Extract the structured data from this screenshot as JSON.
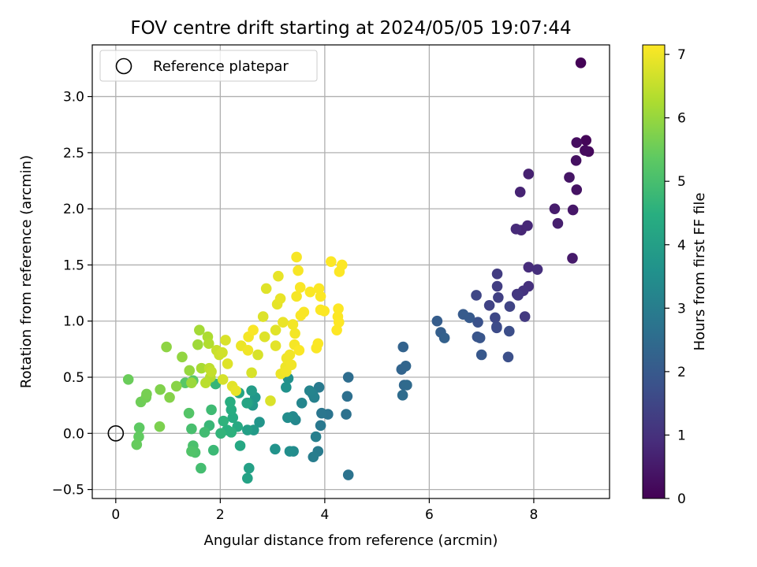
{
  "chart_data": {
    "type": "scatter",
    "title": "FOV centre drift starting at 2024/05/05 19:07:44",
    "xlabel": "Angular distance from reference (arcmin)",
    "ylabel": "Rotation from reference (arcmin)",
    "xlim": [
      -0.45,
      9.45
    ],
    "ylim": [
      -0.58,
      3.46
    ],
    "xticks": [
      0,
      2,
      4,
      6,
      8
    ],
    "xtick_labels": [
      "0",
      "2",
      "4",
      "6",
      "8"
    ],
    "yticks": [
      -0.5,
      0.0,
      0.5,
      1.0,
      1.5,
      2.0,
      2.5,
      3.0
    ],
    "ytick_labels": [
      "−0.5",
      "0.0",
      "0.5",
      "1.0",
      "1.5",
      "2.0",
      "2.5",
      "3.0"
    ],
    "grid": true,
    "legend": {
      "placement": "top-left",
      "entries": [
        "Reference platepar"
      ]
    },
    "reference_point": {
      "x": 0,
      "y": 0
    },
    "colorbar": {
      "label": "Hours from first FF file",
      "range": [
        0,
        7.15
      ],
      "colormap": "viridis",
      "ticks": [
        0,
        1,
        2,
        3,
        4,
        5,
        6,
        7
      ],
      "tick_labels": [
        "0",
        "1",
        "2",
        "3",
        "4",
        "5",
        "6",
        "7"
      ]
    },
    "points": [
      [
        8.9,
        3.3,
        0.05
      ],
      [
        9.0,
        2.61,
        0.1
      ],
      [
        9.05,
        2.51,
        0.15
      ],
      [
        8.98,
        2.52,
        0.2
      ],
      [
        8.82,
        2.59,
        0.25
      ],
      [
        8.81,
        2.43,
        0.3
      ],
      [
        8.82,
        2.17,
        0.35
      ],
      [
        8.68,
        2.28,
        0.4
      ],
      [
        8.75,
        1.99,
        0.45
      ],
      [
        8.74,
        1.56,
        0.5
      ],
      [
        8.4,
        2.0,
        0.55
      ],
      [
        8.46,
        1.87,
        0.6
      ],
      [
        7.9,
        2.31,
        0.65
      ],
      [
        7.74,
        2.15,
        0.7
      ],
      [
        7.76,
        1.81,
        0.75
      ],
      [
        7.88,
        1.85,
        0.8
      ],
      [
        7.66,
        1.82,
        0.85
      ],
      [
        7.9,
        1.48,
        0.9
      ],
      [
        8.07,
        1.46,
        0.95
      ],
      [
        7.9,
        1.31,
        1.0
      ],
      [
        7.8,
        1.27,
        1.05
      ],
      [
        7.68,
        1.24,
        1.1
      ],
      [
        7.7,
        1.23,
        1.15
      ],
      [
        7.83,
        1.04,
        1.2
      ],
      [
        7.3,
        1.42,
        1.25
      ],
      [
        7.3,
        1.31,
        1.3
      ],
      [
        7.32,
        1.21,
        1.35
      ],
      [
        7.15,
        1.14,
        1.4
      ],
      [
        7.54,
        1.13,
        1.45
      ],
      [
        6.9,
        1.23,
        1.5
      ],
      [
        7.26,
        1.03,
        1.55
      ],
      [
        7.29,
        0.95,
        1.6
      ],
      [
        7.29,
        0.94,
        1.65
      ],
      [
        7.53,
        0.91,
        1.7
      ],
      [
        7.51,
        0.68,
        1.75
      ],
      [
        6.93,
        0.99,
        1.8
      ],
      [
        6.92,
        0.86,
        1.85
      ],
      [
        6.97,
        0.85,
        1.9
      ],
      [
        7.0,
        0.7,
        1.95
      ],
      [
        6.77,
        1.03,
        2.0
      ],
      [
        6.65,
        1.06,
        2.05
      ],
      [
        6.15,
        1.0,
        2.1
      ],
      [
        6.22,
        0.9,
        2.15
      ],
      [
        6.29,
        0.85,
        2.2
      ],
      [
        5.5,
        0.77,
        2.25
      ],
      [
        5.47,
        0.57,
        2.3
      ],
      [
        5.55,
        0.6,
        2.35
      ],
      [
        5.52,
        0.43,
        2.4
      ],
      [
        5.57,
        0.43,
        2.45
      ],
      [
        5.49,
        0.34,
        2.5
      ],
      [
        4.45,
        0.5,
        2.55
      ],
      [
        4.43,
        0.33,
        2.6
      ],
      [
        4.41,
        0.17,
        2.65
      ],
      [
        4.45,
        -0.37,
        2.7
      ],
      [
        4.06,
        0.17,
        2.75
      ],
      [
        3.94,
        0.18,
        2.8
      ],
      [
        3.92,
        0.07,
        2.85
      ],
      [
        3.89,
        0.41,
        2.9
      ],
      [
        3.87,
        -0.16,
        2.95
      ],
      [
        3.78,
        -0.21,
        3.0
      ],
      [
        3.83,
        -0.03,
        3.05
      ],
      [
        3.8,
        0.32,
        3.1
      ],
      [
        3.77,
        0.35,
        3.15
      ],
      [
        3.71,
        0.38,
        3.2
      ],
      [
        3.56,
        0.27,
        3.25
      ],
      [
        3.44,
        0.12,
        3.3
      ],
      [
        3.39,
        0.15,
        3.35
      ],
      [
        3.4,
        -0.16,
        3.4
      ],
      [
        3.29,
        0.14,
        3.45
      ],
      [
        3.33,
        -0.16,
        3.5
      ],
      [
        3.3,
        0.49,
        3.55
      ],
      [
        3.26,
        0.41,
        3.6
      ],
      [
        3.05,
        -0.14,
        3.65
      ],
      [
        2.75,
        0.1,
        3.7
      ],
      [
        2.67,
        0.32,
        3.75
      ],
      [
        2.62,
        0.25,
        3.8
      ],
      [
        2.64,
        0.03,
        3.85
      ],
      [
        2.6,
        0.38,
        3.9
      ],
      [
        2.54,
        0.27,
        3.95
      ],
      [
        2.52,
        0.03,
        4.0
      ],
      [
        2.55,
        -0.31,
        4.05
      ],
      [
        2.52,
        -0.4,
        4.1
      ],
      [
        2.51,
        0.27,
        4.15
      ],
      [
        2.36,
        0.36,
        4.2
      ],
      [
        2.38,
        -0.11,
        4.25
      ],
      [
        2.33,
        0.06,
        4.3
      ],
      [
        2.24,
        0.14,
        4.35
      ],
      [
        2.21,
        0.21,
        4.4
      ],
      [
        2.19,
        0.28,
        4.45
      ],
      [
        2.13,
        0.03,
        4.5
      ],
      [
        2.21,
        0.01,
        4.55
      ],
      [
        2.06,
        0.11,
        4.6
      ],
      [
        2.01,
        0.0,
        4.65
      ],
      [
        1.91,
        0.44,
        4.7
      ],
      [
        1.79,
        0.07,
        4.75
      ],
      [
        1.87,
        -0.15,
        4.8
      ],
      [
        1.83,
        0.21,
        4.85
      ],
      [
        1.7,
        0.01,
        4.9
      ],
      [
        1.63,
        -0.31,
        4.95
      ],
      [
        1.45,
        0.04,
        5.0
      ],
      [
        1.48,
        -0.11,
        5.05
      ],
      [
        1.52,
        -0.17,
        5.1
      ],
      [
        1.45,
        -0.16,
        5.15
      ],
      [
        1.4,
        0.18,
        5.2
      ],
      [
        1.33,
        0.45,
        5.25
      ],
      [
        1.48,
        0.47,
        5.3
      ],
      [
        0.45,
        0.05,
        5.35
      ],
      [
        0.44,
        -0.03,
        5.4
      ],
      [
        0.4,
        -0.1,
        5.45
      ],
      [
        0.24,
        0.48,
        5.5
      ],
      [
        0.48,
        0.28,
        5.55
      ],
      [
        0.58,
        0.32,
        5.6
      ],
      [
        0.59,
        0.35,
        5.65
      ],
      [
        0.84,
        0.06,
        5.7
      ],
      [
        0.85,
        0.39,
        5.75
      ],
      [
        1.03,
        0.32,
        5.8
      ],
      [
        1.16,
        0.42,
        5.85
      ],
      [
        0.97,
        0.77,
        5.9
      ],
      [
        1.27,
        0.68,
        5.95
      ],
      [
        1.41,
        0.56,
        6.0
      ],
      [
        1.45,
        0.45,
        6.05
      ],
      [
        1.57,
        0.79,
        6.1
      ],
      [
        1.6,
        0.92,
        6.15
      ],
      [
        1.64,
        0.58,
        6.2
      ],
      [
        1.76,
        0.86,
        6.25
      ],
      [
        1.78,
        0.8,
        6.3
      ],
      [
        1.81,
        0.5,
        6.35
      ],
      [
        1.72,
        0.45,
        6.4
      ],
      [
        1.79,
        0.58,
        6.45
      ],
      [
        1.83,
        0.55,
        6.5
      ],
      [
        1.93,
        0.74,
        6.55
      ],
      [
        1.98,
        0.7,
        6.6
      ],
      [
        2.04,
        0.72,
        6.65
      ],
      [
        2.05,
        0.48,
        6.7
      ],
      [
        2.1,
        0.83,
        6.75
      ],
      [
        2.14,
        0.62,
        6.8
      ],
      [
        2.23,
        0.42,
        6.85
      ],
      [
        2.3,
        0.38,
        6.9
      ],
      [
        2.4,
        0.78,
        6.95
      ],
      [
        2.53,
        0.74,
        7.0
      ],
      [
        2.54,
        0.86,
        7.05
      ],
      [
        2.63,
        0.92,
        7.1
      ],
      [
        2.72,
        0.7,
        6.72
      ],
      [
        2.6,
        0.54,
        6.73
      ],
      [
        2.96,
        0.29,
        6.76
      ],
      [
        2.82,
        1.04,
        6.78
      ],
      [
        2.85,
        0.86,
        6.8
      ],
      [
        2.88,
        1.29,
        6.82
      ],
      [
        3.06,
        0.92,
        6.84
      ],
      [
        3.06,
        0.78,
        6.86
      ],
      [
        3.09,
        1.15,
        6.88
      ],
      [
        3.11,
        1.4,
        6.9
      ],
      [
        3.15,
        1.2,
        6.92
      ],
      [
        3.2,
        0.99,
        6.94
      ],
      [
        3.16,
        0.53,
        6.96
      ],
      [
        3.25,
        0.59,
        6.98
      ],
      [
        3.27,
        0.67,
        7.0
      ],
      [
        3.26,
        0.55,
        7.0
      ],
      [
        3.33,
        0.7,
        7.02
      ],
      [
        3.36,
        0.61,
        7.02
      ],
      [
        3.43,
        0.89,
        7.04
      ],
      [
        3.39,
        0.97,
        7.04
      ],
      [
        3.42,
        0.79,
        7.06
      ],
      [
        3.46,
        1.22,
        7.06
      ],
      [
        3.46,
        1.57,
        7.08
      ],
      [
        3.49,
        1.45,
        7.08
      ],
      [
        3.53,
        1.3,
        7.1
      ],
      [
        3.54,
        1.05,
        7.1
      ],
      [
        3.6,
        1.08,
        7.1
      ],
      [
        3.51,
        0.74,
        7.12
      ],
      [
        3.72,
        1.26,
        7.12
      ],
      [
        3.84,
        0.76,
        7.12
      ],
      [
        3.87,
        0.8,
        7.12
      ],
      [
        3.92,
        1.1,
        7.13
      ],
      [
        3.92,
        1.22,
        7.13
      ],
      [
        3.89,
        1.29,
        7.13
      ],
      [
        3.99,
        1.09,
        7.13
      ],
      [
        4.12,
        1.53,
        7.14
      ],
      [
        4.28,
        1.44,
        7.14
      ],
      [
        4.33,
        1.5,
        7.14
      ],
      [
        4.26,
        1.11,
        7.14
      ],
      [
        4.25,
        1.04,
        7.14
      ],
      [
        4.27,
        0.99,
        7.15
      ],
      [
        4.23,
        0.92,
        7.15
      ]
    ]
  }
}
